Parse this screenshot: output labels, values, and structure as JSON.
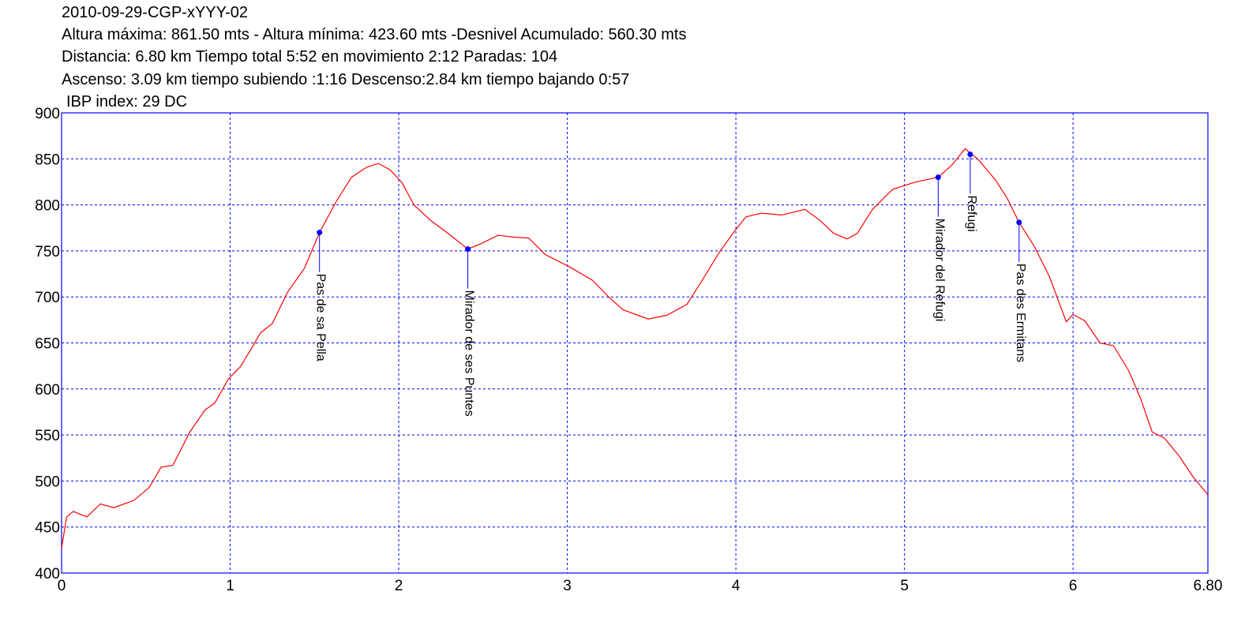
{
  "chart_data": {
    "type": "line",
    "title": "2010-09-29-CGP-xYYY-02",
    "subtitle": [
      "Altura máxima: 861.50 mts - Altura mínima: 423.60 mts -Desnivel Acumulado: 560.30 mts",
      "Distancia: 6.80 km  Tiempo total 5:52  en movimiento 2:12 Paradas: 104",
      "Ascenso: 3.09 km  tiempo subiendo :1:16  Descenso:2.84 km tiempo bajando 0:57",
      "IBP index: 29 DC"
    ],
    "color": "#ff0000",
    "x": [
      0,
      0.03,
      0.07,
      0.15,
      0.23,
      0.31,
      0.43,
      0.52,
      0.59,
      0.66,
      0.76,
      0.85,
      0.91,
      0.99,
      1.06,
      1.13,
      1.18,
      1.25,
      1.34,
      1.44,
      1.53,
      1.63,
      1.72,
      1.81,
      1.88,
      1.95,
      2.02,
      2.09,
      2.19,
      2.3,
      2.41,
      2.49,
      2.59,
      2.68,
      2.77,
      2.87,
      3.01,
      3.15,
      3.24,
      3.33,
      3.48,
      3.59,
      3.71,
      3.8,
      3.9,
      3.99,
      4.06,
      4.15,
      4.27,
      4.41,
      4.5,
      4.58,
      4.66,
      4.72,
      4.81,
      4.93,
      5.07,
      5.2,
      5.28,
      5.36,
      5.44,
      5.54,
      5.61,
      5.68,
      5.77,
      5.86,
      5.96,
      6.0,
      6.07,
      6.16,
      6.24,
      6.33,
      6.4,
      6.47,
      6.54,
      6.63,
      6.71,
      6.8
    ],
    "values": [
      427,
      461,
      467,
      461,
      475,
      471,
      479,
      493,
      515,
      517,
      553,
      577,
      585,
      611,
      624,
      645,
      661,
      671,
      705,
      731,
      770,
      804,
      830,
      841,
      845,
      838,
      824,
      800,
      783,
      768,
      752,
      758,
      767,
      765,
      764,
      746,
      733,
      718,
      701,
      686,
      676,
      680,
      692,
      718,
      748,
      771,
      787,
      791,
      789,
      795,
      783,
      769,
      763,
      769,
      795,
      817,
      825,
      830,
      843,
      861,
      849,
      827,
      807,
      781,
      755,
      722,
      673,
      681,
      674,
      650,
      647,
      620,
      590,
      553,
      547,
      527,
      505,
      485
    ],
    "xlim": [
      0,
      6.8
    ],
    "ylim": [
      400,
      900
    ],
    "xticks": [
      0,
      1,
      2,
      3,
      4,
      5,
      6,
      {
        "value": 6.8,
        "label": "6.80"
      }
    ],
    "yticks": [
      400,
      450,
      500,
      550,
      600,
      650,
      700,
      750,
      800,
      850,
      900
    ],
    "grid": true,
    "grid_color": "#0000ff",
    "frame_color": "#0000ff",
    "marker_color": "#0000ff",
    "annotations": [
      {
        "label": "Pas de sa Pella",
        "x": 1.53,
        "y": 770
      },
      {
        "label": "Mirador de ses Puntes",
        "x": 2.41,
        "y": 752
      },
      {
        "label": "Mirador del Refugi",
        "x": 5.2,
        "y": 830
      },
      {
        "label": "Refugi",
        "x": 5.39,
        "y": 855
      },
      {
        "label": "Pas des Ermitans",
        "x": 5.68,
        "y": 781
      }
    ]
  }
}
